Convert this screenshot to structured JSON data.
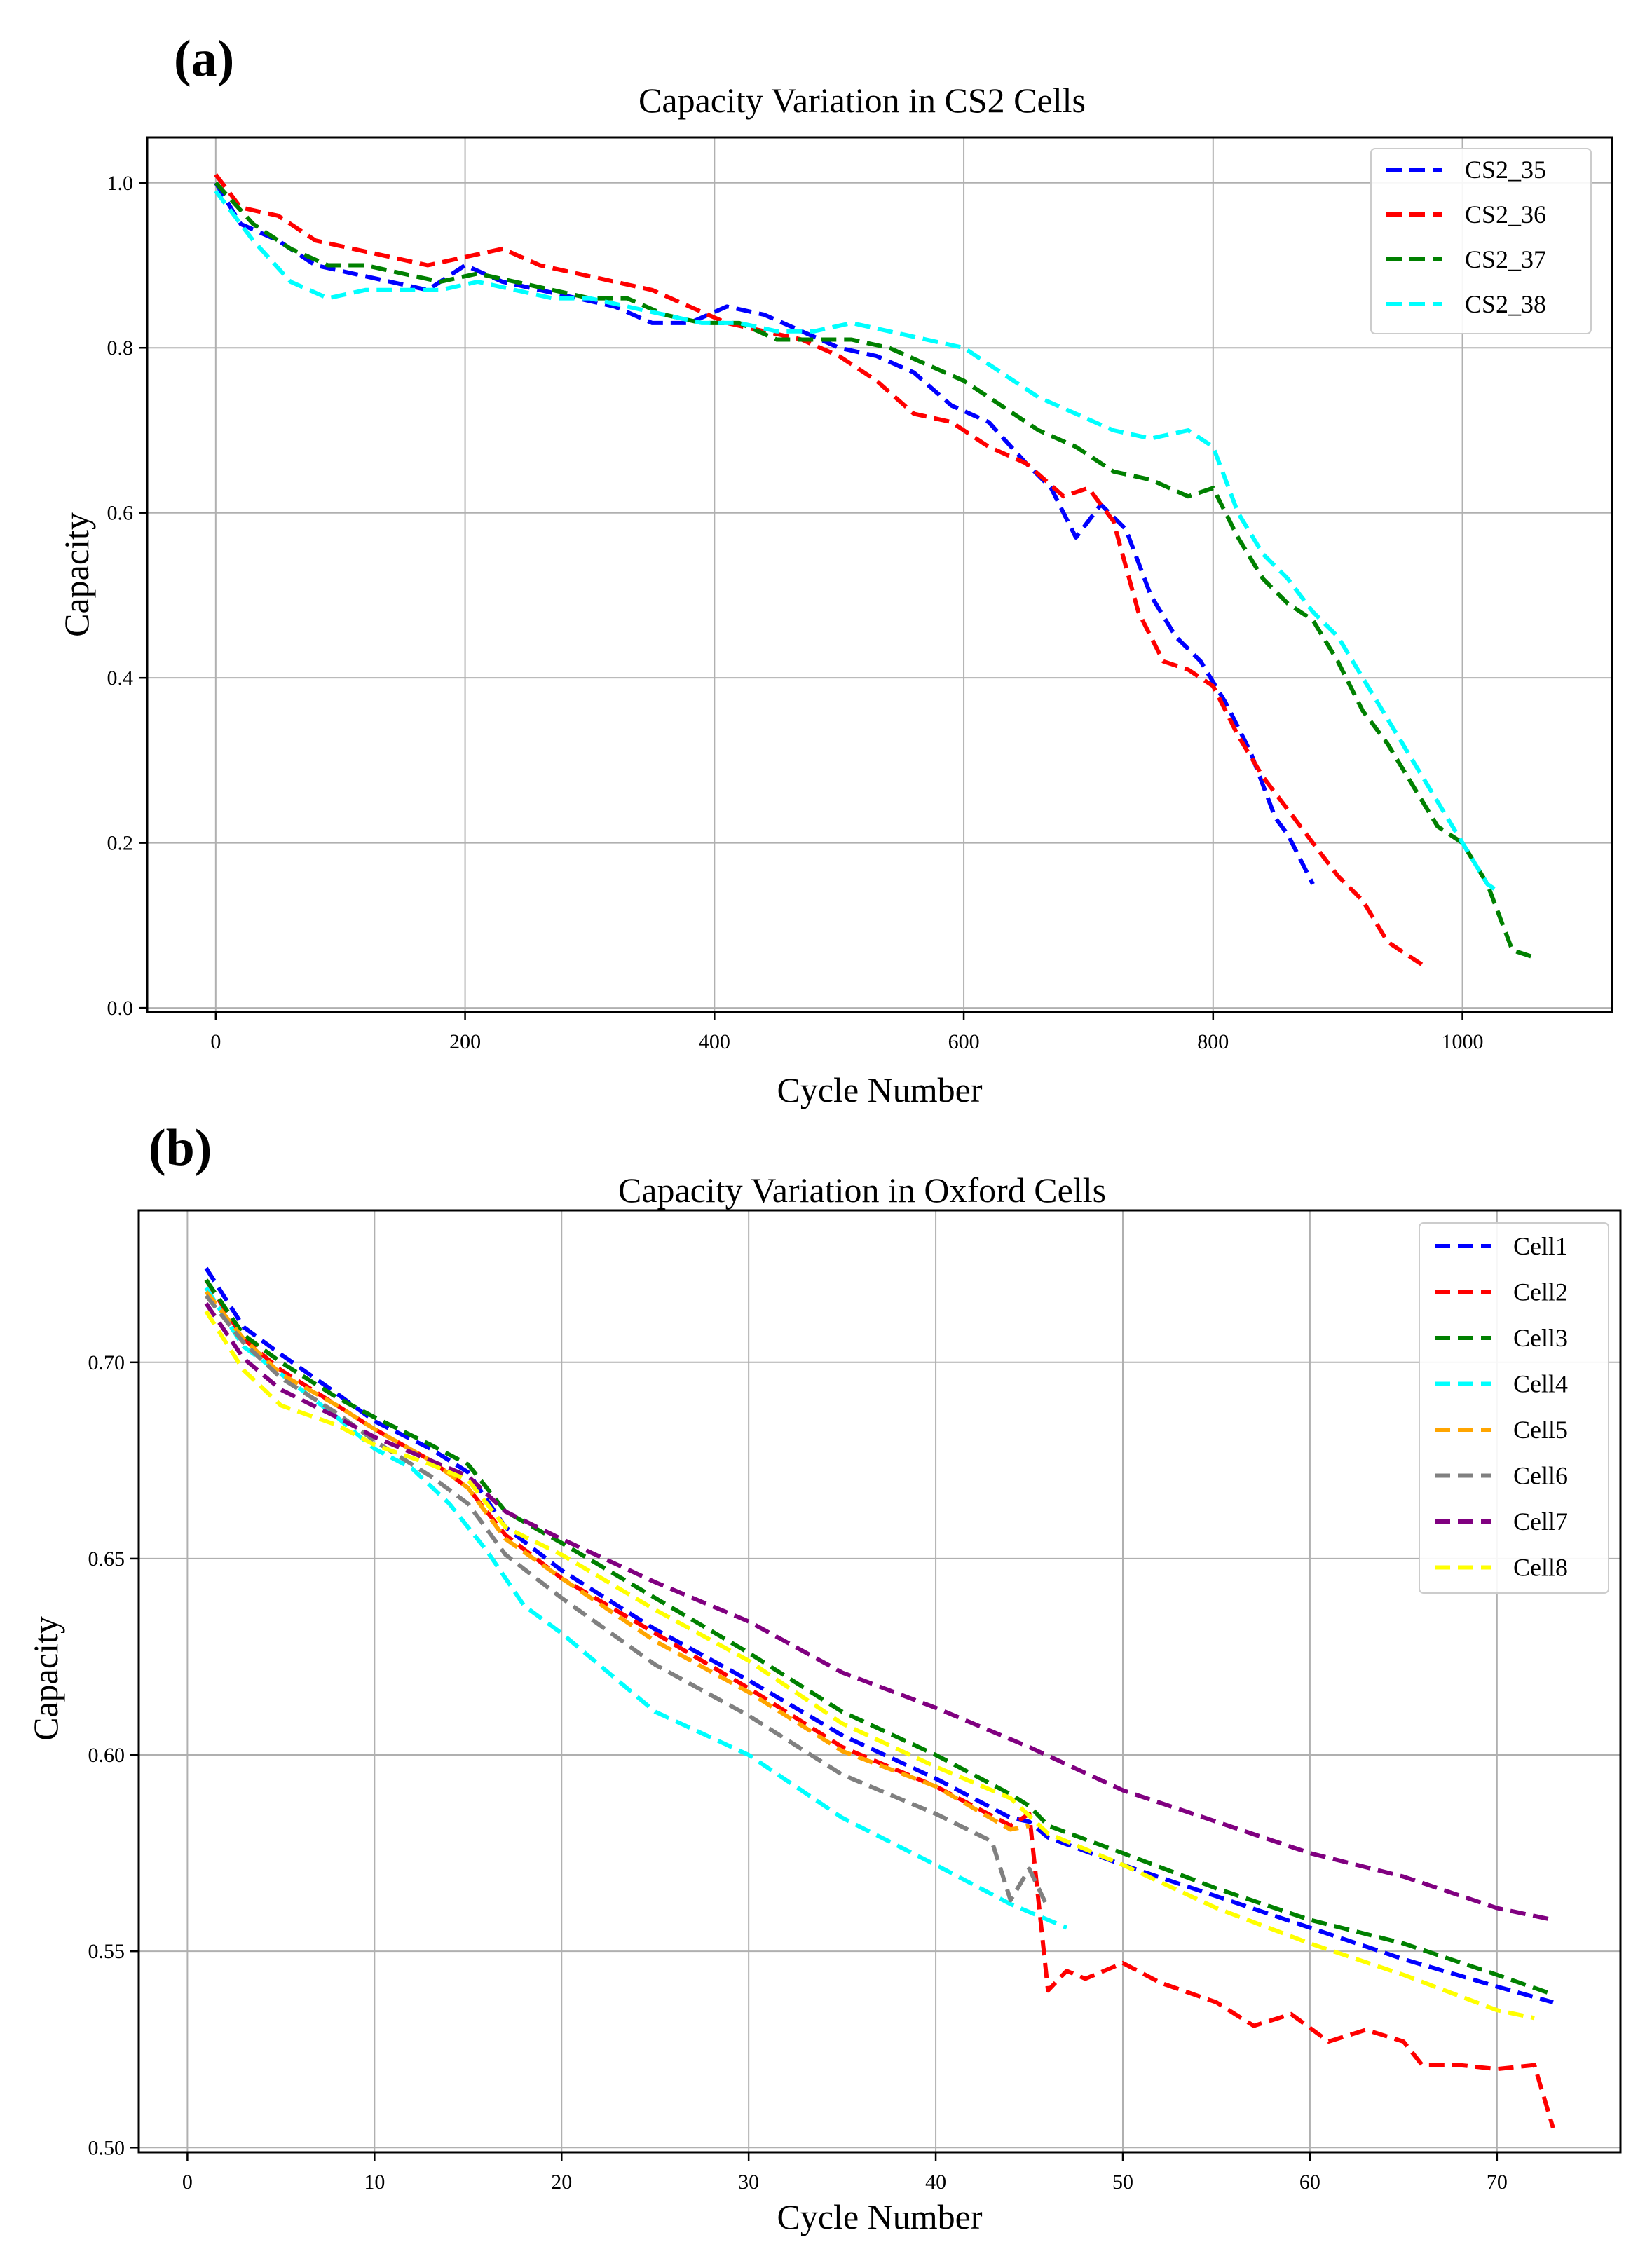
{
  "chart_data": [
    {
      "panel_label": "(a)",
      "type": "line",
      "title": "Capacity Variation in CS2 Cells",
      "xlabel": "Cycle Number",
      "ylabel": "Capacity",
      "xlim": [
        -55,
        1120
      ],
      "ylim": [
        -0.005,
        1.055
      ],
      "xticks": [
        0,
        200,
        400,
        600,
        800,
        1000
      ],
      "xtick_labels": [
        "0",
        "200",
        "400",
        "600",
        "800",
        "1000"
      ],
      "yticks": [
        0.0,
        0.2,
        0.4,
        0.6,
        0.8,
        1.0
      ],
      "ytick_labels": [
        "0.0",
        "0.2",
        "0.4",
        "0.6",
        "0.8",
        "1.0"
      ],
      "grid": true,
      "legend_position": "top-right",
      "series": [
        {
          "name": "CS2_35",
          "color": "#0000ff",
          "x": [
            0,
            20,
            50,
            80,
            110,
            140,
            170,
            200,
            230,
            260,
            290,
            320,
            350,
            380,
            410,
            440,
            470,
            500,
            530,
            560,
            590,
            620,
            650,
            670,
            690,
            710,
            730,
            750,
            770,
            790,
            810,
            830,
            850,
            860,
            870,
            880
          ],
          "y": [
            1.0,
            0.95,
            0.93,
            0.9,
            0.89,
            0.88,
            0.87,
            0.9,
            0.88,
            0.87,
            0.86,
            0.85,
            0.83,
            0.83,
            0.85,
            0.84,
            0.82,
            0.8,
            0.79,
            0.77,
            0.73,
            0.71,
            0.66,
            0.63,
            0.57,
            0.61,
            0.58,
            0.5,
            0.45,
            0.42,
            0.37,
            0.31,
            0.23,
            0.21,
            0.18,
            0.15
          ]
        },
        {
          "name": "CS2_36",
          "color": "#ff0000",
          "x": [
            0,
            20,
            50,
            80,
            110,
            140,
            170,
            200,
            230,
            260,
            290,
            320,
            350,
            380,
            410,
            440,
            470,
            500,
            530,
            560,
            590,
            620,
            650,
            680,
            700,
            720,
            740,
            760,
            780,
            800,
            820,
            840,
            860,
            880,
            900,
            920,
            940,
            960,
            970
          ],
          "y": [
            1.01,
            0.97,
            0.96,
            0.93,
            0.92,
            0.91,
            0.9,
            0.91,
            0.92,
            0.9,
            0.89,
            0.88,
            0.87,
            0.85,
            0.83,
            0.82,
            0.81,
            0.79,
            0.76,
            0.72,
            0.71,
            0.68,
            0.66,
            0.62,
            0.63,
            0.59,
            0.48,
            0.42,
            0.41,
            0.39,
            0.33,
            0.28,
            0.24,
            0.2,
            0.16,
            0.13,
            0.08,
            0.06,
            0.05
          ]
        },
        {
          "name": "CS2_37",
          "color": "#008000",
          "x": [
            0,
            30,
            60,
            90,
            120,
            150,
            180,
            210,
            240,
            270,
            300,
            330,
            360,
            390,
            420,
            450,
            480,
            510,
            540,
            570,
            600,
            630,
            660,
            690,
            720,
            750,
            780,
            800,
            820,
            840,
            860,
            880,
            900,
            920,
            940,
            960,
            980,
            1000,
            1020,
            1040,
            1060
          ],
          "y": [
            1.0,
            0.95,
            0.92,
            0.9,
            0.9,
            0.89,
            0.88,
            0.89,
            0.88,
            0.87,
            0.86,
            0.86,
            0.84,
            0.83,
            0.83,
            0.81,
            0.81,
            0.81,
            0.8,
            0.78,
            0.76,
            0.73,
            0.7,
            0.68,
            0.65,
            0.64,
            0.62,
            0.63,
            0.57,
            0.52,
            0.49,
            0.47,
            0.42,
            0.36,
            0.32,
            0.27,
            0.22,
            0.2,
            0.15,
            0.07,
            0.06
          ]
        },
        {
          "name": "CS2_38",
          "color": "#00ffff",
          "x": [
            0,
            30,
            60,
            90,
            120,
            150,
            180,
            210,
            240,
            270,
            300,
            330,
            360,
            390,
            420,
            450,
            480,
            510,
            540,
            570,
            600,
            630,
            660,
            690,
            720,
            750,
            780,
            800,
            820,
            840,
            860,
            880,
            900,
            920,
            940,
            960,
            980,
            1000,
            1020,
            1030
          ],
          "y": [
            0.99,
            0.93,
            0.88,
            0.86,
            0.87,
            0.87,
            0.87,
            0.88,
            0.87,
            0.86,
            0.86,
            0.85,
            0.84,
            0.83,
            0.83,
            0.82,
            0.82,
            0.83,
            0.82,
            0.81,
            0.8,
            0.77,
            0.74,
            0.72,
            0.7,
            0.69,
            0.7,
            0.68,
            0.6,
            0.55,
            0.52,
            0.48,
            0.45,
            0.4,
            0.35,
            0.3,
            0.25,
            0.2,
            0.15,
            0.14
          ]
        }
      ]
    },
    {
      "panel_label": "(b)",
      "type": "line",
      "title": "Capacity Variation in Oxford Cells",
      "xlabel": "Cycle Number",
      "ylabel": "Capacity",
      "xlim": [
        -2.6,
        76.6
      ],
      "ylim": [
        0.4988,
        0.7387
      ],
      "xticks": [
        0,
        10,
        20,
        30,
        40,
        50,
        60,
        70
      ],
      "xtick_labels": [
        "0",
        "10",
        "20",
        "30",
        "40",
        "50",
        "60",
        "70"
      ],
      "yticks": [
        0.5,
        0.55,
        0.6,
        0.65,
        0.7
      ],
      "ytick_labels": [
        "0.50",
        "0.55",
        "0.60",
        "0.65",
        "0.70"
      ],
      "grid": true,
      "legend_position": "top-right",
      "series": [
        {
          "name": "Cell1",
          "color": "#0000ff",
          "x": [
            1,
            3,
            5,
            8,
            10,
            13,
            15,
            17,
            20,
            25,
            30,
            35,
            40,
            44,
            45,
            46,
            50,
            55,
            60,
            65,
            70,
            73
          ],
          "y": [
            0.724,
            0.709,
            0.702,
            0.692,
            0.685,
            0.678,
            0.672,
            0.658,
            0.647,
            0.632,
            0.619,
            0.605,
            0.594,
            0.584,
            0.583,
            0.579,
            0.572,
            0.564,
            0.556,
            0.548,
            0.541,
            0.537
          ]
        },
        {
          "name": "Cell2",
          "color": "#ff0000",
          "x": [
            1,
            3,
            5,
            8,
            10,
            13,
            15,
            17,
            20,
            25,
            30,
            35,
            40,
            44,
            45,
            46,
            47,
            48,
            50,
            52,
            55,
            57,
            59,
            61,
            63,
            65,
            66,
            68,
            70,
            72,
            73
          ],
          "y": [
            0.721,
            0.706,
            0.698,
            0.689,
            0.683,
            0.675,
            0.668,
            0.656,
            0.645,
            0.631,
            0.617,
            0.602,
            0.592,
            0.582,
            0.585,
            0.54,
            0.545,
            0.543,
            0.547,
            0.542,
            0.537,
            0.531,
            0.534,
            0.527,
            0.53,
            0.527,
            0.521,
            0.521,
            0.52,
            0.521,
            0.505
          ]
        },
        {
          "name": "Cell3",
          "color": "#008000",
          "x": [
            1,
            3,
            5,
            8,
            10,
            13,
            15,
            17,
            20,
            25,
            30,
            35,
            40,
            44,
            45,
            46,
            50,
            55,
            60,
            65,
            70,
            73
          ],
          "y": [
            0.721,
            0.707,
            0.7,
            0.691,
            0.686,
            0.679,
            0.674,
            0.662,
            0.654,
            0.64,
            0.626,
            0.611,
            0.6,
            0.59,
            0.587,
            0.582,
            0.575,
            0.566,
            0.558,
            0.552,
            0.544,
            0.539
          ]
        },
        {
          "name": "Cell4",
          "color": "#00ffff",
          "x": [
            1,
            3,
            5,
            8,
            10,
            12,
            14,
            16,
            18,
            20,
            25,
            30,
            35,
            40,
            44,
            47
          ],
          "y": [
            0.719,
            0.704,
            0.697,
            0.686,
            0.678,
            0.673,
            0.664,
            0.652,
            0.638,
            0.631,
            0.611,
            0.6,
            0.584,
            0.572,
            0.562,
            0.556
          ]
        },
        {
          "name": "Cell5",
          "color": "#ffa500",
          "x": [
            1,
            3,
            5,
            8,
            10,
            13,
            15,
            17,
            20,
            25,
            30,
            35,
            40,
            44,
            45
          ],
          "y": [
            0.718,
            0.706,
            0.697,
            0.689,
            0.683,
            0.675,
            0.668,
            0.655,
            0.645,
            0.629,
            0.616,
            0.601,
            0.592,
            0.581,
            0.582
          ]
        },
        {
          "name": "Cell6",
          "color": "#808080",
          "x": [
            1,
            3,
            5,
            8,
            10,
            13,
            15,
            17,
            20,
            25,
            30,
            35,
            40,
            43,
            44,
            45,
            46
          ],
          "y": [
            0.717,
            0.705,
            0.696,
            0.687,
            0.68,
            0.671,
            0.664,
            0.651,
            0.64,
            0.623,
            0.61,
            0.595,
            0.585,
            0.578,
            0.563,
            0.571,
            0.561
          ]
        },
        {
          "name": "Cell7",
          "color": "#800080",
          "x": [
            1,
            3,
            5,
            8,
            10,
            13,
            15,
            17,
            20,
            25,
            30,
            35,
            40,
            45,
            50,
            55,
            60,
            65,
            70,
            73
          ],
          "y": [
            0.715,
            0.701,
            0.693,
            0.686,
            0.681,
            0.675,
            0.671,
            0.662,
            0.655,
            0.644,
            0.634,
            0.621,
            0.612,
            0.602,
            0.591,
            0.583,
            0.575,
            0.569,
            0.561,
            0.558
          ]
        },
        {
          "name": "Cell8",
          "color": "#ffff00",
          "x": [
            1,
            3,
            5,
            8,
            10,
            13,
            15,
            17,
            20,
            25,
            30,
            35,
            40,
            44,
            46,
            50,
            55,
            60,
            65,
            70,
            72
          ],
          "y": [
            0.713,
            0.698,
            0.689,
            0.684,
            0.679,
            0.674,
            0.67,
            0.658,
            0.651,
            0.637,
            0.624,
            0.608,
            0.597,
            0.589,
            0.58,
            0.572,
            0.561,
            0.552,
            0.544,
            0.535,
            0.533
          ]
        }
      ]
    }
  ]
}
